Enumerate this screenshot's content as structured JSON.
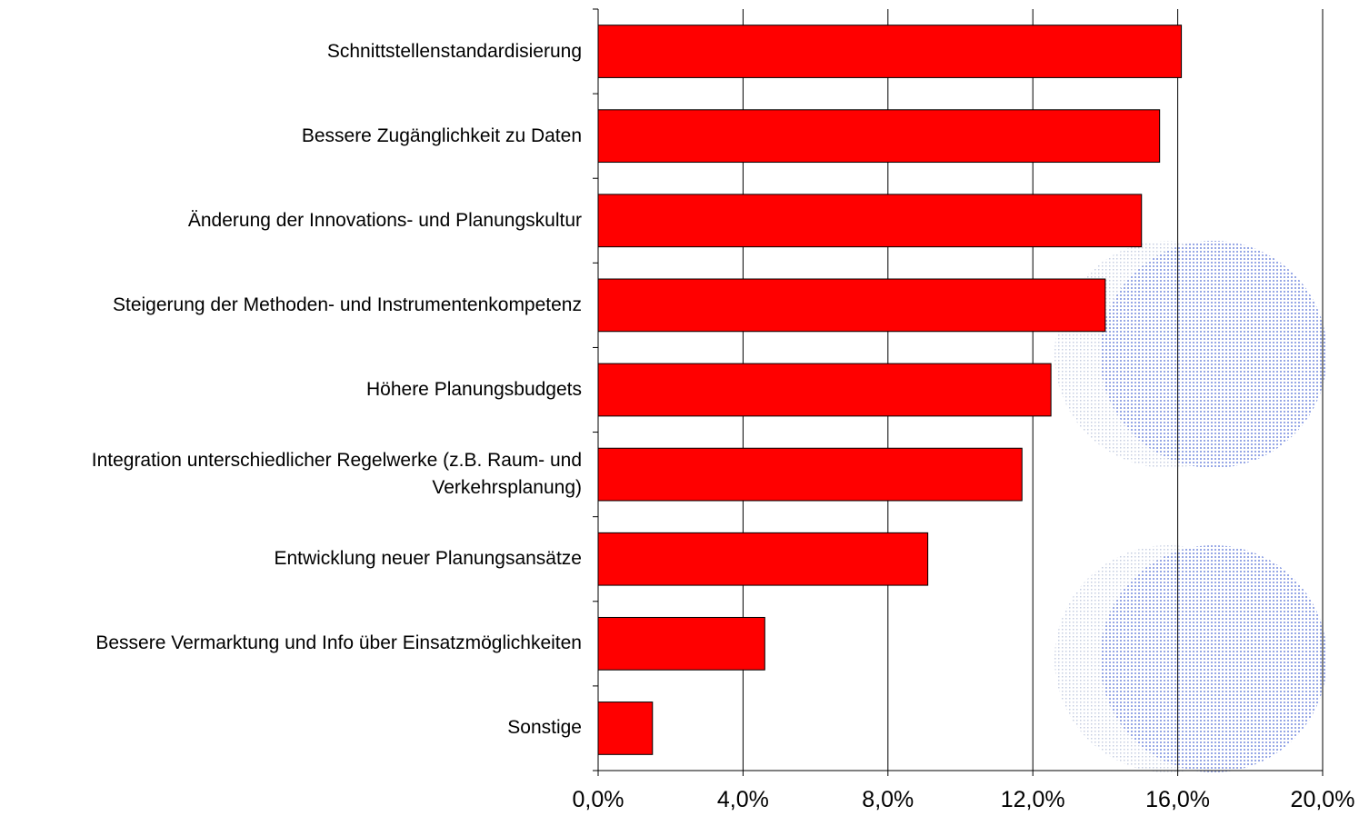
{
  "chart_data": {
    "type": "bar",
    "orientation": "horizontal",
    "categories": [
      "Schnittstellenstandardisierung",
      "Bessere Zugänglichkeit zu Daten",
      "Änderung der Innovations- und Planungskultur",
      "Steigerung der Methoden- und Instrumentenkompetenz",
      "Höhere Planungsbudgets",
      "Integration unterschiedlicher Regelwerke (z.B. Raum- und Verkehrsplanung)",
      "Entwicklung neuer Planungsansätze",
      "Bessere Vermarktung und Info über Einsatzmöglichkeiten",
      "Sonstige"
    ],
    "values": [
      16.1,
      15.5,
      15.0,
      14.0,
      12.5,
      11.7,
      9.1,
      4.6,
      1.5
    ],
    "color": "#ff0000",
    "xlim": [
      0,
      20
    ],
    "xticks": [
      {
        "value": 0,
        "label": "0,0%"
      },
      {
        "value": 4,
        "label": "4,0%"
      },
      {
        "value": 8,
        "label": "8,0%"
      },
      {
        "value": 12,
        "label": "12,0%"
      },
      {
        "value": 16,
        "label": "16,0%"
      },
      {
        "value": 20,
        "label": "20,0%"
      }
    ],
    "grid": true
  }
}
